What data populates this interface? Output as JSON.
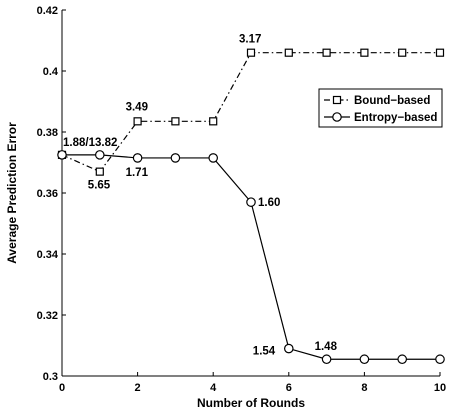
{
  "chart_data": {
    "type": "line",
    "xlabel": "Number of Rounds",
    "ylabel": "Average Prediction Error",
    "xlim": [
      0,
      10
    ],
    "ylim": [
      0.3,
      0.42
    ],
    "xticks": [
      0,
      2,
      4,
      6,
      8,
      10
    ],
    "yticks": [
      0.3,
      0.32,
      0.34,
      0.36,
      0.38,
      0.4,
      0.42
    ],
    "grid": false,
    "legend_position": "right",
    "series": [
      {
        "name": "Bound−based",
        "marker": "square",
        "line_style": "dash-dot",
        "color": "#000000",
        "x": [
          0,
          1,
          2,
          3,
          4,
          5,
          6,
          7,
          8,
          9,
          10
        ],
        "y": [
          0.3725,
          0.367,
          0.3835,
          0.3835,
          0.3835,
          0.406,
          0.406,
          0.406,
          0.406,
          0.406,
          0.406
        ]
      },
      {
        "name": "Entropy−based",
        "marker": "circle",
        "line_style": "solid",
        "color": "#000000",
        "x": [
          0,
          1,
          2,
          3,
          4,
          5,
          6,
          7,
          8,
          9,
          10
        ],
        "y": [
          0.3725,
          0.3725,
          0.3715,
          0.3715,
          0.3715,
          0.357,
          0.309,
          0.3055,
          0.3055,
          0.3055,
          0.3055
        ]
      }
    ],
    "annotations": [
      {
        "text": "1.88/13.82",
        "x": 0,
        "y": 0.3725
      },
      {
        "text": "5.65",
        "x": 1,
        "y": 0.367
      },
      {
        "text": "3.49",
        "x": 2,
        "y": 0.3835
      },
      {
        "text": "1.71",
        "x": 2,
        "y": 0.3715
      },
      {
        "text": "3.17",
        "x": 5,
        "y": 0.406
      },
      {
        "text": "1.60",
        "x": 5,
        "y": 0.357
      },
      {
        "text": "1.54",
        "x": 6,
        "y": 0.309
      },
      {
        "text": "1.48",
        "x": 7,
        "y": 0.3055
      }
    ]
  }
}
